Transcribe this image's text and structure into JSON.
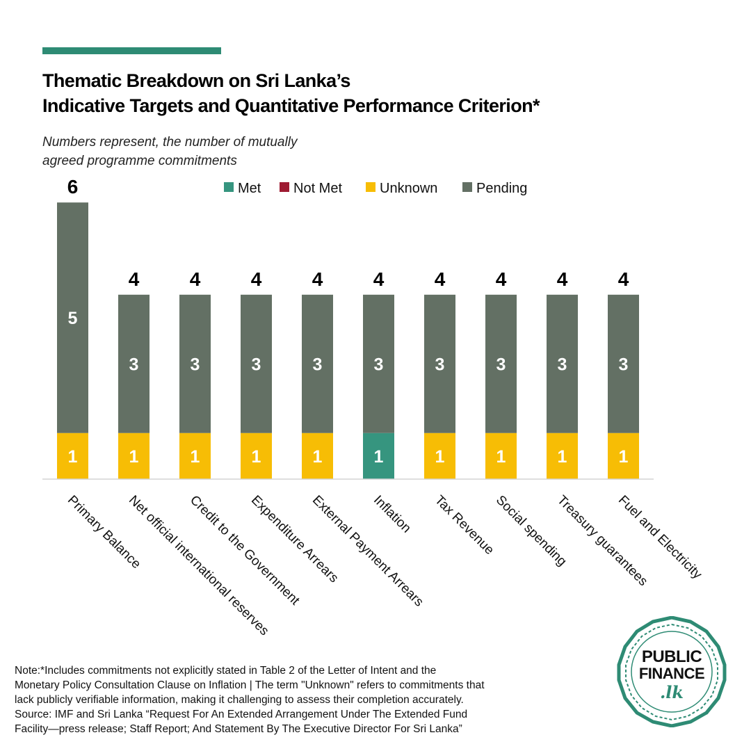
{
  "title_lines": [
    "Thematic Breakdown on Sri Lanka’s",
    "Indicative Targets and Quantitative Performance Criterion*"
  ],
  "subtitle_lines": [
    "Numbers represent, the number of mutually",
    "agreed programme commitments"
  ],
  "chart_data": {
    "type": "bar",
    "stacked": true,
    "categories": [
      "Primary Balance",
      "Net official international reserves",
      "Credit to the Government",
      "Expenditure Arrears",
      "External Payment Arrears",
      "Inflation",
      "Tax Revenue",
      "Social spending",
      "Treasury guarantees",
      "Fuel and Electricity"
    ],
    "series": [
      {
        "name": "Met",
        "color": "#36957f",
        "values": [
          0,
          0,
          0,
          0,
          0,
          1,
          0,
          0,
          0,
          0
        ]
      },
      {
        "name": "Not Met",
        "color": "#9e1b32",
        "values": [
          0,
          0,
          0,
          0,
          0,
          0,
          0,
          0,
          0,
          0
        ]
      },
      {
        "name": "Unknown",
        "color": "#f7bd05",
        "values": [
          1,
          1,
          1,
          1,
          1,
          0,
          1,
          1,
          1,
          1
        ]
      },
      {
        "name": "Pending",
        "color": "#637064",
        "values": [
          5,
          3,
          3,
          3,
          3,
          3,
          3,
          3,
          3,
          3
        ]
      }
    ],
    "totals": [
      6,
      4,
      4,
      4,
      4,
      4,
      4,
      4,
      4,
      4
    ],
    "ylim": [
      0,
      6
    ],
    "grid": false,
    "legend_position": "top"
  },
  "note_lines": [
    "Note:*Includes  commitments not explicitly stated in Table 2 of the Letter of Intent and the",
    "Monetary Policy Consultation Clause on Inflation | The term \"Unknown\" refers to commitments that",
    "lack publicly verifiable information, making it challenging to assess their completion accurately.",
    "Source: IMF and Sri Lanka “Request For An Extended Arrangement Under The Extended Fund",
    "Facility—press release; Staff Report; And Statement By The Executive Director For Sri Lanka”"
  ],
  "logo": {
    "line1": "PUBLIC",
    "line2": "FINANCE",
    "line3": ".lk",
    "color": "#2e8b74"
  }
}
